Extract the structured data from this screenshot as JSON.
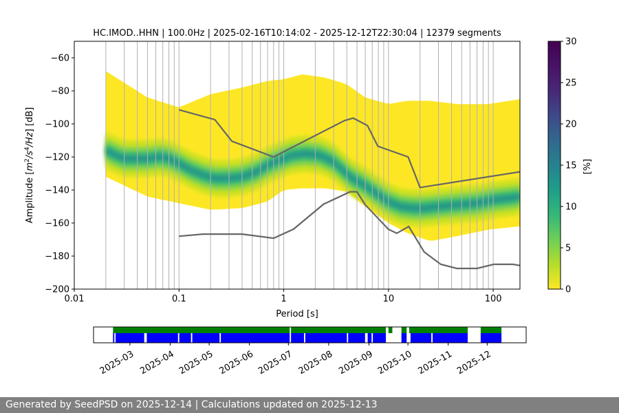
{
  "chart_data": {
    "type": "heatmap",
    "title": "HC.IMOD..HHN | 100.0Hz | 2025-02-16T10:14:02 - 2025-12-12T22:30:04 | 12379 segments",
    "xlabel": "Period [s]",
    "ylabel_parts": [
      "Amplitude [",
      "m",
      "2",
      "/",
      "s",
      "4",
      "/",
      "Hz",
      "] [dB]"
    ],
    "x_scale": "log",
    "xlim": [
      0.01,
      180
    ],
    "ylim": [
      -200,
      -50
    ],
    "x_tick_values": [
      0.01,
      0.1,
      1,
      10,
      100
    ],
    "x_tick_labels": [
      "0.01",
      "0.1",
      "1",
      "10",
      "100"
    ],
    "y_tick_values": [
      -60,
      -80,
      -100,
      -120,
      -140,
      -160,
      -180,
      -200
    ],
    "y_tick_labels": [
      "−60",
      "−80",
      "−100",
      "−120",
      "−140",
      "−160",
      "−180",
      "−200"
    ],
    "period_gridlines": [
      0.02,
      0.03,
      0.04,
      0.05,
      0.06,
      0.07,
      0.08,
      0.09,
      0.1,
      0.2,
      0.3,
      0.4,
      0.5,
      0.6,
      0.7,
      0.8,
      0.9,
      1,
      2,
      3,
      4,
      5,
      6,
      7,
      8,
      9,
      10,
      20,
      30,
      40,
      50,
      60,
      70,
      80,
      90,
      100
    ],
    "colorbar": {
      "label": "[%]",
      "range": [
        0,
        30
      ],
      "tick_values": [
        0,
        5,
        10,
        15,
        20,
        25,
        30
      ],
      "tick_labels": [
        "0",
        "5",
        "10",
        "15",
        "20",
        "25",
        "30"
      ],
      "colormap": "viridis"
    },
    "nlnm": {
      "name": "NLNM",
      "x": [
        0.1,
        0.17,
        0.4,
        0.8,
        1.24,
        2.4,
        4.3,
        5.0,
        6.0,
        10.0,
        12.0,
        15.6,
        21.9,
        31.6,
        45.0,
        70.0,
        101.0,
        154.0,
        180.0
      ],
      "y": [
        -168,
        -166.7,
        -166.7,
        -169.2,
        -163.7,
        -148.6,
        -141.1,
        -141.1,
        -149.0,
        -163.8,
        -166.2,
        -162.1,
        -177.5,
        -185.0,
        -187.5,
        -187.5,
        -185.0,
        -185.0,
        -185.7
      ]
    },
    "nhnm": {
      "name": "NHNM",
      "x": [
        0.1,
        0.22,
        0.32,
        0.8,
        3.8,
        4.6,
        6.3,
        7.9,
        15.4,
        20.0,
        180.0
      ],
      "y": [
        -91.5,
        -97.4,
        -110.5,
        -120.0,
        -98.0,
        -96.5,
        -101.0,
        -113.5,
        -120.0,
        -138.5,
        -129.0
      ]
    },
    "psd_mode": {
      "x": [
        0.02,
        0.025,
        0.03,
        0.04,
        0.05,
        0.065,
        0.08,
        0.1,
        0.13,
        0.17,
        0.22,
        0.3,
        0.4,
        0.55,
        0.7,
        0.9,
        1.2,
        1.6,
        2.2,
        3.0,
        3.8,
        4.5,
        5.5,
        6.5,
        8.0,
        10,
        13,
        17,
        22,
        30,
        45,
        70,
        100,
        140,
        180
      ],
      "y": [
        -116,
        -119,
        -121,
        -121,
        -121,
        -120,
        -121,
        -124,
        -128,
        -131,
        -133,
        -133,
        -132,
        -129,
        -125,
        -122,
        -119,
        -118,
        -119,
        -123,
        -129,
        -133,
        -136,
        -139,
        -143,
        -147,
        -150,
        -151,
        -151,
        -150,
        -149,
        -148,
        -146,
        -145,
        -144
      ]
    },
    "psd_spread": {
      "x": [
        0.02,
        0.05,
        0.1,
        0.2,
        0.4,
        0.7,
        1.0,
        1.5,
        2.5,
        4.0,
        6.0,
        10,
        15,
        25,
        45,
        90,
        180
      ],
      "upper": [
        -68,
        -84,
        -90,
        -82,
        -78,
        -74,
        -73,
        -70,
        -72,
        -76,
        -84,
        -88,
        -86,
        -86,
        -88,
        -88,
        -85
      ],
      "lower": [
        -132,
        -144,
        -148,
        -152,
        -151,
        -147,
        -140,
        -139,
        -139,
        -141,
        -150,
        -160,
        -166,
        -171,
        -168,
        -164,
        -162
      ]
    },
    "availability": {
      "date_range": [
        "2025-02-16",
        "2025-12-12"
      ],
      "axis_range": [
        "2025-02-01",
        "2025-12-31"
      ],
      "tick_values": [
        "2025-03-01",
        "2025-04-01",
        "2025-05-01",
        "2025-06-01",
        "2025-07-01",
        "2025-08-01",
        "2025-09-01",
        "2025-10-01",
        "2025-11-01",
        "2025-12-01"
      ],
      "tick_labels": [
        "2025-03",
        "2025-04",
        "2025-05",
        "2025-06",
        "2025-07",
        "2025-08",
        "2025-09",
        "2025-10",
        "2025-11",
        "2025-12"
      ],
      "data_segments": [
        [
          "2025-02-16",
          "2025-07-02"
        ],
        [
          "2025-07-03",
          "2025-09-14"
        ],
        [
          "2025-09-16",
          "2025-09-19"
        ],
        [
          "2025-09-26",
          "2025-09-30"
        ],
        [
          "2025-10-02",
          "2025-11-16"
        ],
        [
          "2025-11-26",
          "2025-12-12"
        ]
      ],
      "psd_segments": [
        [
          "2025-02-16",
          "2025-02-17"
        ],
        [
          "2025-02-18",
          "2025-03-12"
        ],
        [
          "2025-03-14",
          "2025-04-07"
        ],
        [
          "2025-04-08",
          "2025-04-17"
        ],
        [
          "2025-04-18",
          "2025-05-09"
        ],
        [
          "2025-05-10",
          "2025-07-02"
        ],
        [
          "2025-07-03",
          "2025-07-13"
        ],
        [
          "2025-07-14",
          "2025-08-15"
        ],
        [
          "2025-08-16",
          "2025-08-29"
        ],
        [
          "2025-08-31",
          "2025-09-03"
        ],
        [
          "2025-09-04",
          "2025-09-14"
        ],
        [
          "2025-09-26",
          "2025-09-30"
        ],
        [
          "2025-10-03",
          "2025-10-19"
        ],
        [
          "2025-10-20",
          "2025-11-16"
        ],
        [
          "2025-11-26",
          "2025-12-12"
        ]
      ],
      "colors": {
        "data": "#008000",
        "psd": "#0000ff"
      }
    }
  },
  "footer": {
    "text": "Generated by SeedPSD on 2025-12-14 | Calculations updated on 2025-12-13"
  }
}
